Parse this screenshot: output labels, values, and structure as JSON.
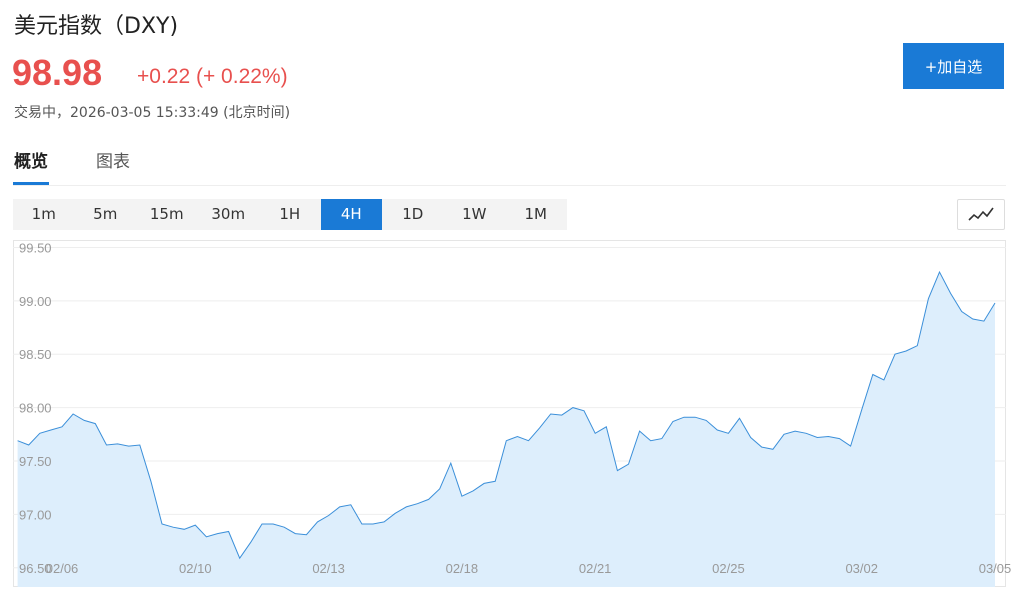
{
  "header": {
    "title": "美元指数（DXY)",
    "price": "98.98",
    "change": "+0.22 (+ 0.22%)",
    "status": "交易中，2026-03-05 15:33:49 (北京时间)",
    "button": "+加自选"
  },
  "tabs": [
    "概览",
    "图表"
  ],
  "active_tab": "概览",
  "intervals": [
    "1m",
    "5m",
    "15m",
    "30m",
    "1H",
    "4H",
    "1D",
    "1W",
    "1M"
  ],
  "active_interval": "4H",
  "chart_data": {
    "type": "area",
    "color": "#3b8fd9",
    "fill": "#ddeefc",
    "grid": true,
    "categories": [
      null,
      null,
      null,
      null,
      "02/06",
      null,
      null,
      null,
      null,
      null,
      null,
      null,
      null,
      null,
      null,
      null,
      "02/10",
      null,
      null,
      null,
      null,
      null,
      null,
      null,
      null,
      null,
      null,
      null,
      "02/13",
      null,
      null,
      null,
      null,
      null,
      null,
      null,
      null,
      null,
      null,
      null,
      "02/18",
      null,
      null,
      null,
      null,
      null,
      null,
      null,
      null,
      null,
      null,
      null,
      "02/21",
      null,
      null,
      null,
      null,
      null,
      null,
      null,
      null,
      null,
      null,
      null,
      "02/25",
      null,
      null,
      null,
      null,
      null,
      null,
      null,
      null,
      null,
      null,
      null,
      "03/02",
      null,
      null,
      null,
      null,
      null,
      null,
      null,
      null,
      null,
      null,
      null,
      "03/05"
    ],
    "values": [
      97.69,
      97.65,
      97.76,
      97.79,
      97.82,
      97.94,
      97.88,
      97.85,
      97.65,
      97.66,
      97.64,
      97.65,
      97.31,
      96.91,
      96.88,
      96.86,
      96.9,
      96.79,
      96.82,
      96.84,
      96.59,
      96.74,
      96.91,
      96.91,
      96.88,
      96.82,
      96.81,
      96.93,
      96.99,
      97.07,
      97.09,
      96.91,
      96.91,
      96.93,
      97.01,
      97.07,
      97.1,
      97.14,
      97.24,
      97.48,
      97.17,
      97.22,
      97.29,
      97.31,
      97.69,
      97.73,
      97.69,
      97.81,
      97.94,
      97.93,
      98.0,
      97.97,
      97.76,
      97.82,
      97.41,
      97.47,
      97.78,
      97.69,
      97.71,
      97.87,
      97.91,
      97.91,
      97.88,
      97.79,
      97.76,
      97.9,
      97.72,
      97.63,
      97.61,
      97.75,
      97.78,
      97.76,
      97.72,
      97.73,
      97.71,
      97.64,
      97.98,
      98.31,
      98.26,
      98.5,
      98.53,
      98.58,
      99.02,
      99.27,
      99.07,
      98.9,
      98.83,
      98.81,
      98.98
    ],
    "ylim": [
      96.32,
      99.57
    ],
    "yticks": [
      {
        "value": 96.5,
        "label": "96.50"
      },
      {
        "value": 97,
        "label": "97.00"
      },
      {
        "value": 97.5,
        "label": "97.50"
      },
      {
        "value": 98,
        "label": "98.00"
      },
      {
        "value": 98.5,
        "label": "98.50"
      },
      {
        "value": 99,
        "label": "99.00"
      },
      {
        "value": 99.5,
        "label": "99.50"
      }
    ]
  }
}
